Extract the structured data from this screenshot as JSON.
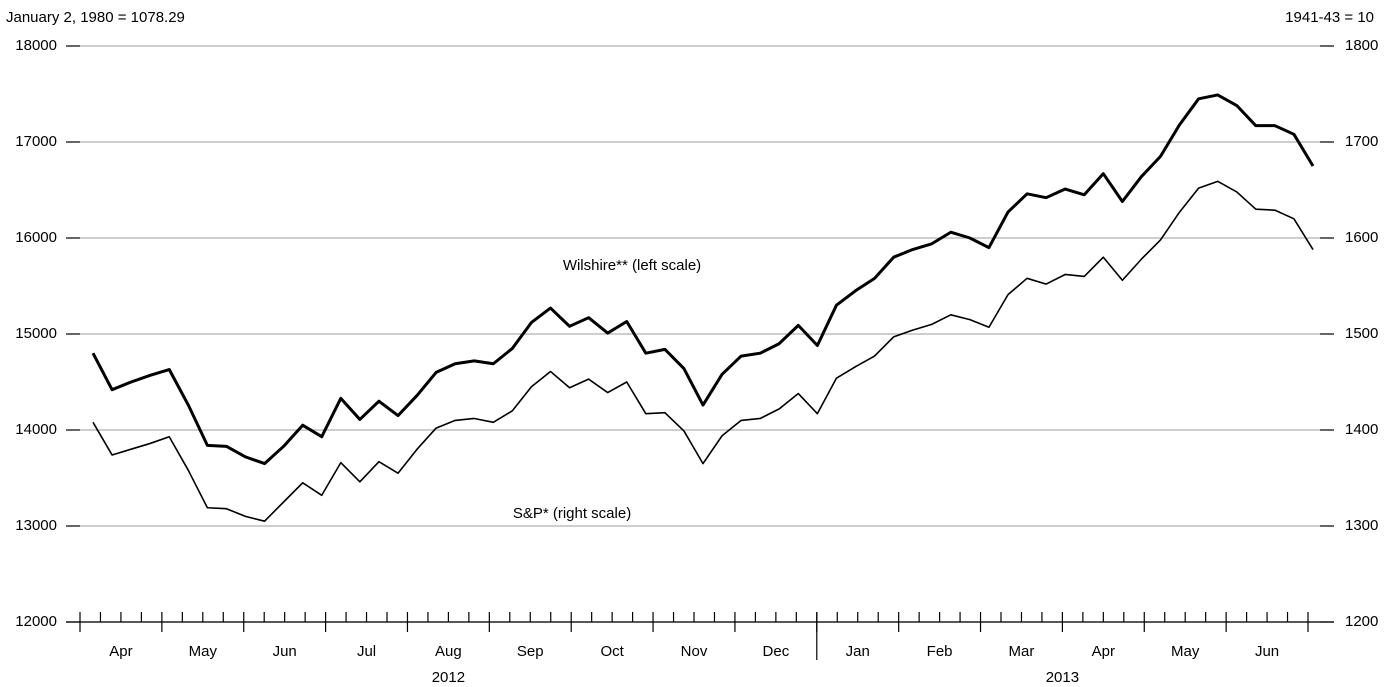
{
  "chart_data": {
    "type": "line",
    "annotations": {
      "left_note": "January 2, 1980 = 1078.29",
      "right_note": "1941-43 = 10",
      "wilshire_label": "Wilshire** (left scale)",
      "sp_label": "S&P* (right scale)"
    },
    "month_labels": [
      "Apr",
      "May",
      "Jun",
      "Jul",
      "Aug",
      "Sep",
      "Oct",
      "Nov",
      "Dec",
      "Jan",
      "Feb",
      "Mar",
      "Apr",
      "May",
      "Jun"
    ],
    "year_labels": [
      "2012",
      "2013"
    ],
    "ylim": [
      12000,
      18000
    ],
    "yticks": [
      12000,
      13000,
      14000,
      15000,
      16000,
      17000,
      18000
    ],
    "y2lim": [
      1200,
      1800
    ],
    "y2ticks": [
      1200,
      1300,
      1400,
      1500,
      1600,
      1700,
      1800
    ],
    "grid": true,
    "series": [
      {
        "name": "Wilshire",
        "color": "#000000",
        "values": [
          14800,
          14420,
          14500,
          14570,
          14630,
          14260,
          13840,
          13830,
          13720,
          13650,
          13830,
          14050,
          13930,
          14330,
          14110,
          14300,
          14150,
          14360,
          14600,
          14690,
          14720,
          14690,
          14850,
          15120,
          15270,
          15080,
          15170,
          15010,
          15130,
          14800,
          14840,
          14640,
          14260,
          14580,
          14770,
          14800,
          14900,
          15090,
          14880,
          15300,
          15450,
          15580,
          15800,
          15880,
          15940,
          16060,
          16000,
          15900,
          16270,
          16460,
          16420,
          16510,
          16450,
          16670,
          16380,
          16640,
          16850,
          17180,
          17450,
          17490,
          17380,
          17170,
          17170,
          17080,
          16750
        ]
      },
      {
        "name": "S&P",
        "color": "#000000",
        "axis": "y2",
        "values": [
          1408,
          1374,
          1380,
          1386,
          1393,
          1358,
          1319,
          1318,
          1310,
          1305,
          1325,
          1345,
          1332,
          1366,
          1346,
          1367,
          1355,
          1380,
          1402,
          1410,
          1412,
          1408,
          1420,
          1445,
          1461,
          1444,
          1453,
          1439,
          1450,
          1417,
          1418,
          1399,
          1365,
          1394,
          1410,
          1412,
          1422,
          1438,
          1417,
          1454,
          1466,
          1477,
          1497,
          1504,
          1510,
          1520,
          1515,
          1507,
          1541,
          1558,
          1552,
          1562,
          1560,
          1580,
          1556,
          1578,
          1598,
          1627,
          1652,
          1659,
          1648,
          1630,
          1629,
          1620,
          1588
        ]
      }
    ]
  }
}
